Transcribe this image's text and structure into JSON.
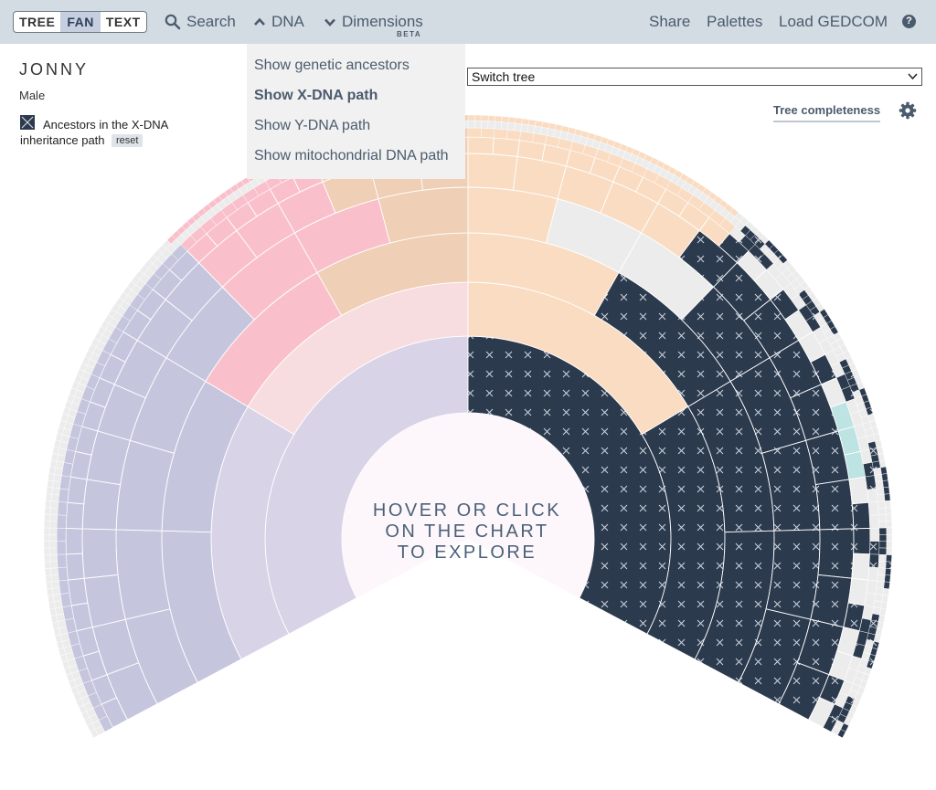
{
  "view_modes": {
    "tree": "TREE",
    "fan": "FAN",
    "text": "TEXT",
    "active": "FAN"
  },
  "nav": {
    "search": "Search",
    "dna": "DNA",
    "dimensions": "Dimensions",
    "dimensions_badge": "BETA",
    "share": "Share",
    "palettes": "Palettes",
    "load": "Load GEDCOM",
    "help": "?"
  },
  "dna_menu": {
    "items": [
      "Show genetic ancestors",
      "Show X-DNA path",
      "Show Y-DNA path",
      "Show mitochondrial DNA path"
    ],
    "selected": "Show X-DNA path"
  },
  "person": {
    "name": "JONNY",
    "gender": "Male"
  },
  "legend": {
    "line1": "Ancestors in the X-DNA",
    "line2": "inheritance path",
    "reset": "reset",
    "swatch_color": "#2c3a4e"
  },
  "switch_tree": {
    "label": "Switch tree"
  },
  "tree_completeness": "Tree completeness",
  "center_prompt": {
    "line1": "HOVER OR CLICK",
    "line2": "ON THE CHART",
    "line3": "TO EXPLORE"
  },
  "colors": {
    "xdna": "#2c3a4e",
    "lavender_inner": "#d9d3e8",
    "lavender": "#c5c6de",
    "pink": "#f9c0cc",
    "pink_light": "#f8dde0",
    "peach": "#efcfb5",
    "apricot": "#f9dcc2",
    "teal": "#bde3e2",
    "cream": "#f6e8c6",
    "grey": "#ececec",
    "center": "#fdf7fc"
  },
  "icons": [
    "search-icon",
    "chevron-up-icon",
    "chevron-down-icon",
    "help-icon",
    "gear-icon",
    "dropdown-arrow-icon"
  ]
}
